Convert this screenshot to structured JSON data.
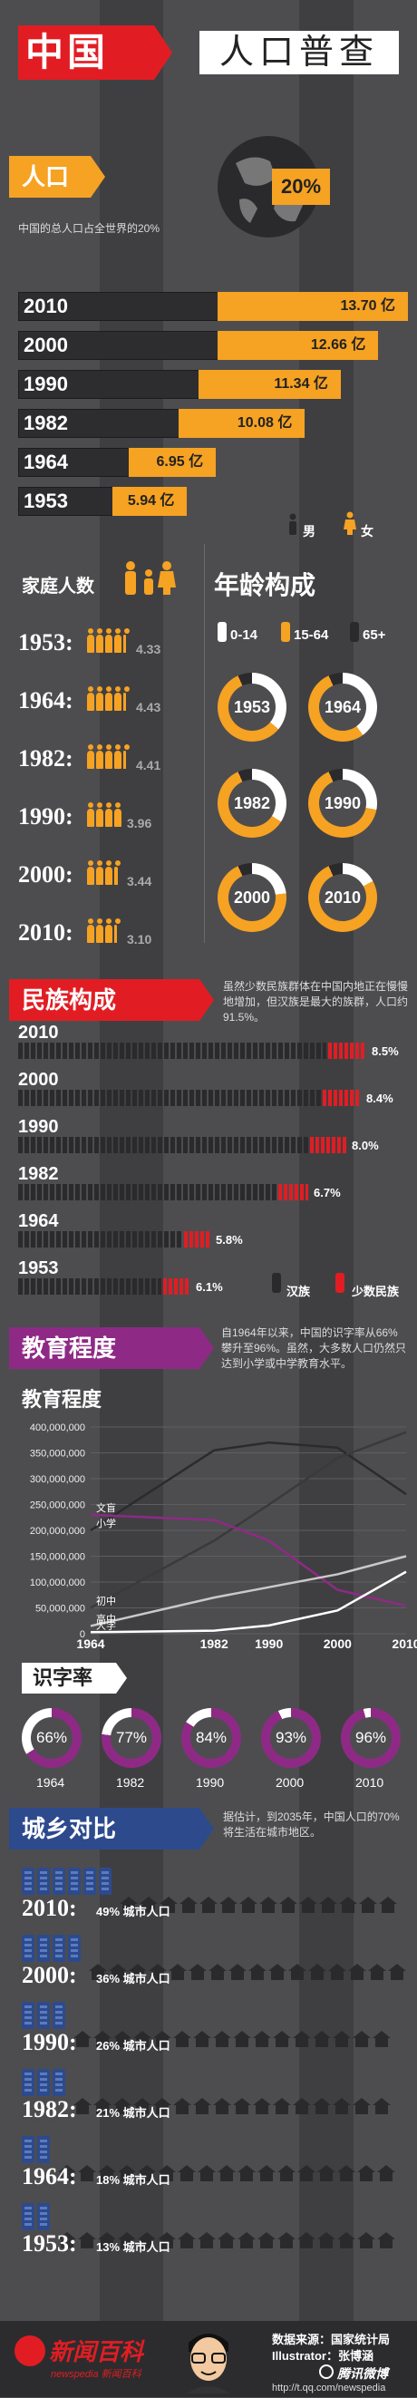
{
  "title": {
    "china": "中国",
    "census": "人口普查"
  },
  "population": {
    "heading": "人口",
    "globe_pct": "20%",
    "note": "中国的总人口占全世界的20%",
    "bars": [
      {
        "year": "2010",
        "label": "13.70 亿",
        "value": 13.7
      },
      {
        "year": "2000",
        "label": "12.66 亿",
        "value": 12.66
      },
      {
        "year": "1990",
        "label": "11.34 亿",
        "value": 11.34
      },
      {
        "year": "1982",
        "label": "10.08 亿",
        "value": 10.08
      },
      {
        "year": "1964",
        "label": "6.95 亿",
        "value": 6.95
      },
      {
        "year": "1953",
        "label": "5.94 亿",
        "value": 5.94
      }
    ],
    "male": "男",
    "female": "女"
  },
  "family": {
    "heading": "家庭人数",
    "rows": [
      {
        "year": "1953:",
        "value": "4.33",
        "n": 4.33
      },
      {
        "year": "1964:",
        "value": "4.43",
        "n": 4.43
      },
      {
        "year": "1982:",
        "value": "4.41",
        "n": 4.41
      },
      {
        "year": "1990:",
        "value": "3.96",
        "n": 3.96
      },
      {
        "year": "2000:",
        "value": "3.44",
        "n": 3.44
      },
      {
        "year": "2010:",
        "value": "3.10",
        "n": 3.1
      }
    ]
  },
  "age": {
    "heading": "年龄构成",
    "legend": [
      "0-14",
      "15-64",
      "65+"
    ],
    "years": [
      "1953",
      "1964",
      "1982",
      "1990",
      "2000",
      "2010"
    ],
    "young_share": [
      0.36,
      0.4,
      0.34,
      0.28,
      0.23,
      0.17
    ]
  },
  "ethnic": {
    "heading": "民族构成",
    "note": "虽然少数民族群体在中国内地正在慢慢地增加，但汉族是最大的族群，人口约91.5%。",
    "rows": [
      {
        "year": "2010",
        "pct": "8.5%",
        "v": 8.5
      },
      {
        "year": "2000",
        "pct": "8.4%",
        "v": 8.4
      },
      {
        "year": "1990",
        "pct": "8.0%",
        "v": 8.0
      },
      {
        "year": "1982",
        "pct": "6.7%",
        "v": 6.7
      },
      {
        "year": "1964",
        "pct": "5.8%",
        "v": 5.8
      },
      {
        "year": "1953",
        "pct": "6.1%",
        "v": 6.1
      }
    ],
    "han": "汉族",
    "minority": "少数民族"
  },
  "education": {
    "heading": "教育程度",
    "note": "自1964年以来，中国的识字率从66%攀升至96%。虽然，大多数人口仍然只达到小学或中学教育水平。",
    "subheading": "教育程度",
    "literacy_heading": "识字率",
    "literacy": [
      {
        "year": "1964",
        "pct": "66%",
        "v": 0.66
      },
      {
        "year": "1982",
        "pct": "77%",
        "v": 0.77
      },
      {
        "year": "1990",
        "pct": "84%",
        "v": 0.84
      },
      {
        "year": "2000",
        "pct": "93%",
        "v": 0.93
      },
      {
        "year": "2010",
        "pct": "96%",
        "v": 0.96
      }
    ]
  },
  "chart_data": {
    "type": "line",
    "x": [
      1964,
      1982,
      1990,
      2000,
      2010
    ],
    "ylim": [
      0,
      400000000
    ],
    "yticks": [
      "400,000,000",
      "350,000,000",
      "300,000,000",
      "250,000,000",
      "200,000,000",
      "150,000,000",
      "100,000,000",
      "50,000,000",
      "0"
    ],
    "xticks": [
      "1964",
      "1982",
      "1990",
      "2000",
      "2010"
    ],
    "series": [
      {
        "name": "小学",
        "values": [
          200000000,
          355000000,
          370000000,
          360000000,
          270000000
        ],
        "color": "#2b2b2d"
      },
      {
        "name": "初中",
        "values": [
          50000000,
          180000000,
          250000000,
          340000000,
          390000000
        ],
        "color": "#3a3a3c"
      },
      {
        "name": "文盲",
        "values": [
          230000000,
          220000000,
          180000000,
          85000000,
          54000000
        ],
        "color": "#8e2a86"
      },
      {
        "name": "高中",
        "values": [
          15000000,
          70000000,
          90000000,
          115000000,
          150000000
        ],
        "color": "#c9c9c9"
      },
      {
        "name": "大学",
        "values": [
          3000000,
          6000000,
          16000000,
          45000000,
          120000000
        ],
        "color": "#ffffff"
      }
    ]
  },
  "urban": {
    "heading": "城乡对比",
    "note": "据估计，到2035年，中国人口的70%将生活在城市地区。",
    "rows": [
      {
        "year": "2010:",
        "pct": "49% 城市人口",
        "v": 0.49
      },
      {
        "year": "2000:",
        "pct": "36% 城市人口",
        "v": 0.36
      },
      {
        "year": "1990:",
        "pct": "26% 城市人口",
        "v": 0.26
      },
      {
        "year": "1982:",
        "pct": "21% 城市人口",
        "v": 0.21
      },
      {
        "year": "1964:",
        "pct": "18% 城市人口",
        "v": 0.18
      },
      {
        "year": "1953:",
        "pct": "13% 城市人口",
        "v": 0.13
      }
    ]
  },
  "footer": {
    "brand": "新闻百科",
    "brand_sub": "newspedia 新闻百科",
    "source": "数据来源：国家统计局",
    "illustrator": "Illustrator：张博涵",
    "weibo": "腾讯微博",
    "url": "http://t.qq.com/newspedia"
  },
  "colors": {
    "red": "#e11d23",
    "orange": "#f6a223",
    "purple": "#8e2a86",
    "blue": "#2d4a8d",
    "bg": "#4d4d4f"
  }
}
